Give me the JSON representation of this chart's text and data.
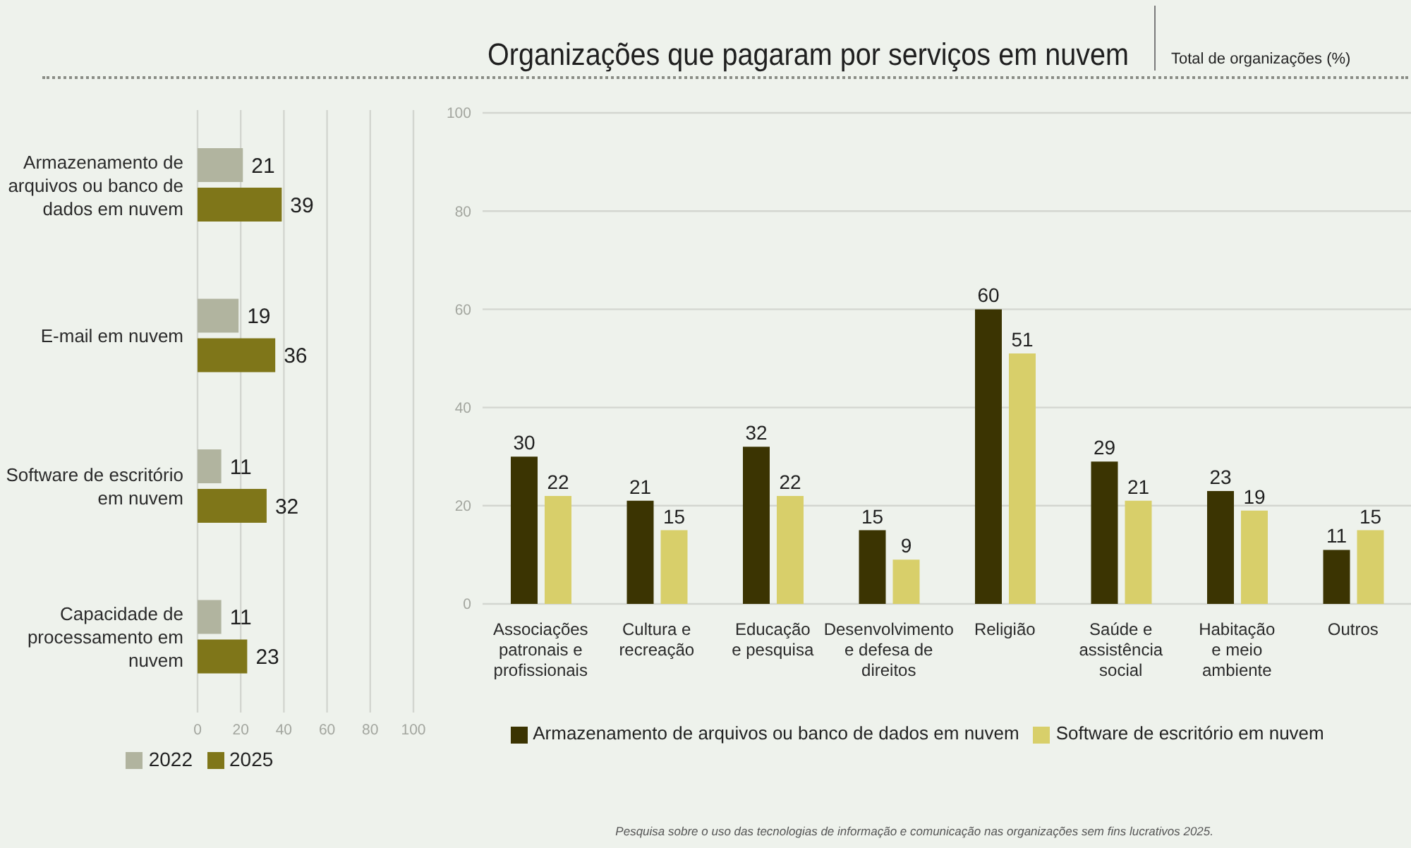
{
  "chart_data": [
    {
      "type": "bar",
      "orientation": "horizontal",
      "categories": [
        "Armazenamento de arquivos ou banco de dados em nuvem",
        "E-mail em nuvem",
        "Software de escritório em nuvem",
        "Capacidade de processamento em nuvem"
      ],
      "series": [
        {
          "name": "2022",
          "color": "#b1b49f",
          "values": [
            21,
            19,
            11,
            11
          ]
        },
        {
          "name": "2025",
          "color": "#7f7619",
          "values": [
            39,
            36,
            32,
            23
          ]
        }
      ],
      "xlim": [
        0,
        100
      ],
      "xticks": [
        0,
        20,
        40,
        60,
        80,
        100
      ],
      "grid": "x",
      "legend": "bottom",
      "data_labels": true
    },
    {
      "type": "bar",
      "title": "Organizações que pagaram por serviços em nuvem",
      "subtitle": "Total de organizações (%)",
      "categories": [
        "Associações patronais e profissionais",
        "Cultura e recreação",
        "Educação e pesquisa",
        "Desenvolvimento e defesa de direitos",
        "Religião",
        "Saúde e assistência social",
        "Habitação e meio ambiente",
        "Outros"
      ],
      "series": [
        {
          "name": "Armazenamento de arquivos ou banco de dados em nuvem",
          "color": "#3b3402",
          "values": [
            30,
            21,
            32,
            15,
            60,
            29,
            23,
            11
          ]
        },
        {
          "name": "Software de escritório em nuvem",
          "color": "#d8cf6a",
          "values": [
            22,
            15,
            22,
            9,
            51,
            21,
            19,
            15
          ]
        }
      ],
      "ylim": [
        0,
        100
      ],
      "yticks": [
        0,
        20,
        40,
        60,
        80,
        100
      ],
      "grid": "y",
      "legend": "bottom",
      "data_labels": true,
      "annotations": [
        "Pesquisa sobre o uso das tecnologias de informação e comunicação nas organizações sem fins lucrativos 2025."
      ]
    }
  ]
}
